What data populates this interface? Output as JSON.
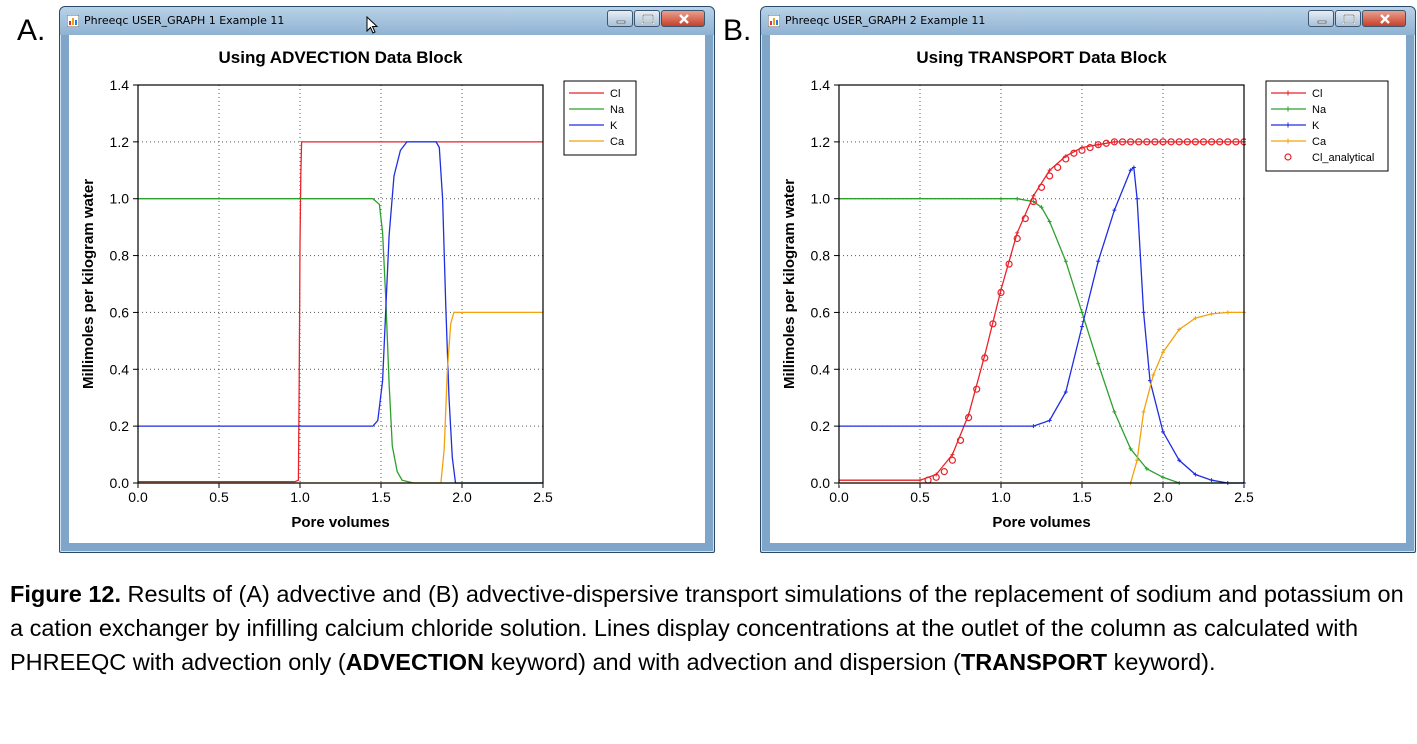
{
  "panels": [
    {
      "letter": "A.",
      "window_title": "Phreeqc USER_GRAPH 1 Example 11",
      "chart_data": {
        "type": "line",
        "title": "Using ADVECTION Data Block",
        "xlabel": "Pore volumes",
        "ylabel": "Millimoles per kilogram water",
        "xlim": [
          0,
          2.5
        ],
        "ylim": [
          0,
          1.4
        ],
        "xticks": [
          "0.0",
          "0.5",
          "1.0",
          "1.5",
          "2.0",
          "2.5"
        ],
        "yticks": [
          "0.0",
          "0.2",
          "0.4",
          "0.6",
          "0.8",
          "1.0",
          "1.2",
          "1.4"
        ],
        "grid": true,
        "legend_position": "top-right",
        "series": [
          {
            "name": "Cl",
            "color": "#e8232a",
            "marker": "none",
            "points": [
              [
                0,
                0.005
              ],
              [
                0.97,
                0.005
              ],
              [
                0.99,
                0.01
              ],
              [
                0.995,
                0.36
              ],
              [
                1.0,
                0.84
              ],
              [
                1.005,
                1.08
              ],
              [
                1.01,
                1.2
              ],
              [
                2.5,
                1.2
              ]
            ]
          },
          {
            "name": "Na",
            "color": "#2ca02c",
            "marker": "none",
            "points": [
              [
                0,
                1.0
              ],
              [
                1.45,
                1.0
              ],
              [
                1.49,
                0.98
              ],
              [
                1.51,
                0.88
              ],
              [
                1.53,
                0.64
              ],
              [
                1.55,
                0.35
              ],
              [
                1.57,
                0.13
              ],
              [
                1.6,
                0.04
              ],
              [
                1.63,
                0.01
              ],
              [
                1.7,
                0.0
              ],
              [
                2.5,
                0.0
              ]
            ]
          },
          {
            "name": "K",
            "color": "#1f2ee0",
            "marker": "none",
            "points": [
              [
                0,
                0.2
              ],
              [
                1.45,
                0.2
              ],
              [
                1.48,
                0.22
              ],
              [
                1.51,
                0.36
              ],
              [
                1.53,
                0.62
              ],
              [
                1.55,
                0.87
              ],
              [
                1.58,
                1.08
              ],
              [
                1.62,
                1.17
              ],
              [
                1.66,
                1.2
              ],
              [
                1.84,
                1.2
              ],
              [
                1.86,
                1.18
              ],
              [
                1.88,
                1.0
              ],
              [
                1.9,
                0.62
              ],
              [
                1.92,
                0.3
              ],
              [
                1.94,
                0.09
              ],
              [
                1.96,
                0.0
              ],
              [
                2.5,
                0.0
              ]
            ]
          },
          {
            "name": "Ca",
            "color": "#f2a20c",
            "marker": "none",
            "points": [
              [
                0,
                0.0
              ],
              [
                1.87,
                0.0
              ],
              [
                1.89,
                0.12
              ],
              [
                1.91,
                0.4
              ],
              [
                1.93,
                0.56
              ],
              [
                1.95,
                0.6
              ],
              [
                2.5,
                0.6
              ]
            ]
          }
        ]
      }
    },
    {
      "letter": "B.",
      "window_title": "Phreeqc USER_GRAPH 2 Example 11",
      "chart_data": {
        "type": "line",
        "title": "Using TRANSPORT Data Block",
        "xlabel": "Pore volumes",
        "ylabel": "Millimoles per kilogram water",
        "xlim": [
          0,
          2.5
        ],
        "ylim": [
          0,
          1.4
        ],
        "xticks": [
          "0.0",
          "0.5",
          "1.0",
          "1.5",
          "2.0",
          "2.5"
        ],
        "yticks": [
          "0.0",
          "0.2",
          "0.4",
          "0.6",
          "0.8",
          "1.0",
          "1.2",
          "1.4"
        ],
        "grid": true,
        "legend_position": "top-right",
        "series": [
          {
            "name": "Cl",
            "color": "#e8232a",
            "marker": "plus",
            "points": [
              [
                0,
                0.01
              ],
              [
                0.5,
                0.01
              ],
              [
                0.6,
                0.03
              ],
              [
                0.7,
                0.1
              ],
              [
                0.8,
                0.24
              ],
              [
                0.9,
                0.45
              ],
              [
                1.0,
                0.68
              ],
              [
                1.1,
                0.88
              ],
              [
                1.2,
                1.01
              ],
              [
                1.3,
                1.1
              ],
              [
                1.4,
                1.15
              ],
              [
                1.5,
                1.18
              ],
              [
                1.6,
                1.19
              ],
              [
                1.7,
                1.2
              ],
              [
                2.5,
                1.2
              ]
            ]
          },
          {
            "name": "Na",
            "color": "#2ca02c",
            "marker": "plus",
            "points": [
              [
                0,
                1.0
              ],
              [
                1.0,
                1.0
              ],
              [
                1.1,
                1.0
              ],
              [
                1.2,
                0.99
              ],
              [
                1.25,
                0.97
              ],
              [
                1.3,
                0.92
              ],
              [
                1.4,
                0.78
              ],
              [
                1.5,
                0.6
              ],
              [
                1.6,
                0.42
              ],
              [
                1.7,
                0.25
              ],
              [
                1.8,
                0.12
              ],
              [
                1.9,
                0.05
              ],
              [
                2.0,
                0.02
              ],
              [
                2.1,
                0.0
              ],
              [
                2.5,
                0.0
              ]
            ]
          },
          {
            "name": "K",
            "color": "#1f2ee0",
            "marker": "plus",
            "points": [
              [
                0,
                0.2
              ],
              [
                1.2,
                0.2
              ],
              [
                1.3,
                0.22
              ],
              [
                1.4,
                0.32
              ],
              [
                1.5,
                0.55
              ],
              [
                1.6,
                0.78
              ],
              [
                1.7,
                0.96
              ],
              [
                1.8,
                1.1
              ],
              [
                1.82,
                1.11
              ],
              [
                1.84,
                1.0
              ],
              [
                1.88,
                0.6
              ],
              [
                1.92,
                0.36
              ],
              [
                2.0,
                0.18
              ],
              [
                2.1,
                0.08
              ],
              [
                2.2,
                0.03
              ],
              [
                2.3,
                0.01
              ],
              [
                2.4,
                0.0
              ],
              [
                2.5,
                0.0
              ]
            ]
          },
          {
            "name": "Ca",
            "color": "#f2a20c",
            "marker": "plus",
            "points": [
              [
                0,
                0.0
              ],
              [
                1.8,
                0.0
              ],
              [
                1.84,
                0.08
              ],
              [
                1.88,
                0.25
              ],
              [
                1.94,
                0.38
              ],
              [
                2.0,
                0.46
              ],
              [
                2.1,
                0.54
              ],
              [
                2.2,
                0.58
              ],
              [
                2.3,
                0.595
              ],
              [
                2.4,
                0.6
              ],
              [
                2.5,
                0.6
              ]
            ]
          },
          {
            "name": "Cl_analytical",
            "color": "#e8232a",
            "marker": "circle",
            "line": false,
            "points": [
              [
                0.55,
                0.01
              ],
              [
                0.6,
                0.02
              ],
              [
                0.65,
                0.04
              ],
              [
                0.7,
                0.08
              ],
              [
                0.75,
                0.15
              ],
              [
                0.8,
                0.23
              ],
              [
                0.85,
                0.33
              ],
              [
                0.9,
                0.44
              ],
              [
                0.95,
                0.56
              ],
              [
                1.0,
                0.67
              ],
              [
                1.05,
                0.77
              ],
              [
                1.1,
                0.86
              ],
              [
                1.15,
                0.93
              ],
              [
                1.2,
                0.99
              ],
              [
                1.25,
                1.04
              ],
              [
                1.3,
                1.08
              ],
              [
                1.35,
                1.11
              ],
              [
                1.4,
                1.14
              ],
              [
                1.45,
                1.16
              ],
              [
                1.5,
                1.17
              ],
              [
                1.55,
                1.18
              ],
              [
                1.6,
                1.19
              ],
              [
                1.65,
                1.195
              ],
              [
                1.7,
                1.2
              ],
              [
                1.75,
                1.2
              ],
              [
                1.8,
                1.2
              ],
              [
                1.85,
                1.2
              ],
              [
                1.9,
                1.2
              ],
              [
                1.95,
                1.2
              ],
              [
                2.0,
                1.2
              ],
              [
                2.05,
                1.2
              ],
              [
                2.1,
                1.2
              ],
              [
                2.15,
                1.2
              ],
              [
                2.2,
                1.2
              ],
              [
                2.25,
                1.2
              ],
              [
                2.3,
                1.2
              ],
              [
                2.35,
                1.2
              ],
              [
                2.4,
                1.2
              ],
              [
                2.45,
                1.2
              ],
              [
                2.5,
                1.2
              ]
            ]
          }
        ]
      }
    }
  ],
  "caption": {
    "label": "Figure 12.",
    "part1": " Results of (A) advective and (B) advective-dispersive transport simulations of the replacement of sodium and potassium on a cation exchanger by infilling calcium chloride solution. Lines display concentrations at the outlet of the column as calculated with PHREEQC with advection only (",
    "kw1": "ADVECTION",
    "part2": " keyword) and with advection and dispersion (",
    "kw2": "TRANSPORT",
    "part3": " keyword)."
  }
}
